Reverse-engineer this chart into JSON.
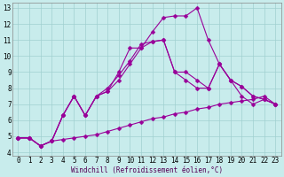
{
  "xlabel": "Windchill (Refroidissement éolien,°C)",
  "background_color": "#c8ecec",
  "grid_color": "#a0d0d0",
  "line_color": "#990099",
  "xlim": [
    -0.5,
    23.5
  ],
  "ylim": [
    3.8,
    13.3
  ],
  "yticks": [
    4,
    5,
    6,
    7,
    8,
    9,
    10,
    11,
    12,
    13
  ],
  "xticks": [
    0,
    1,
    2,
    3,
    4,
    5,
    6,
    7,
    8,
    9,
    10,
    11,
    12,
    13,
    14,
    15,
    16,
    17,
    18,
    19,
    20,
    21,
    22,
    23
  ],
  "series": [
    [
      4.9,
      4.9,
      4.4,
      4.7,
      4.8,
      4.9,
      5.0,
      5.1,
      5.3,
      5.5,
      5.7,
      5.9,
      6.1,
      6.2,
      6.4,
      6.5,
      6.7,
      6.8,
      7.0,
      7.1,
      7.2,
      7.3,
      7.5,
      7.0
    ],
    [
      4.9,
      4.9,
      4.4,
      4.7,
      6.3,
      7.5,
      6.3,
      7.5,
      7.8,
      8.5,
      9.5,
      10.5,
      10.9,
      11.0,
      9.0,
      9.0,
      8.5,
      8.0,
      9.5,
      8.5,
      8.1,
      7.5,
      7.3,
      7.0
    ],
    [
      4.9,
      4.9,
      4.4,
      4.7,
      6.3,
      7.5,
      6.3,
      7.5,
      7.8,
      9.0,
      10.5,
      10.5,
      11.5,
      12.4,
      12.5,
      12.5,
      13.0,
      11.0,
      9.5,
      8.5,
      7.5,
      7.0,
      7.3,
      7.0
    ],
    [
      4.9,
      4.9,
      4.4,
      4.7,
      6.3,
      7.5,
      6.3,
      7.5,
      8.0,
      8.8,
      9.7,
      10.75,
      10.9,
      11.0,
      9.0,
      8.5,
      8.0,
      8.0,
      9.5,
      8.5,
      8.1,
      7.5,
      7.3,
      7.0
    ]
  ],
  "xlabel_fontsize": 5.5,
  "tick_fontsize": 5.5,
  "linewidth": 0.8,
  "markersize": 2.5
}
